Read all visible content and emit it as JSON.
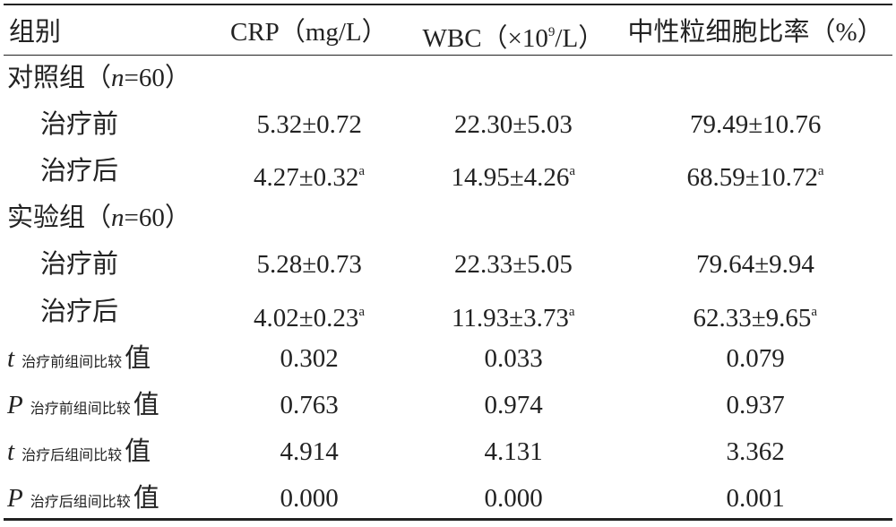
{
  "table": {
    "header": [
      [
        {
          "t": "组别"
        }
      ],
      [
        {
          "t": "CRP（mg/L）"
        }
      ],
      [
        {
          "t": "WBC（×10"
        },
        {
          "t": "9",
          "s": "sup"
        },
        {
          "t": "/L）"
        }
      ],
      [
        {
          "t": "中性粒细胞比率（%）"
        }
      ]
    ],
    "rows": [
      {
        "kind": "group",
        "cells": [
          [
            {
              "t": "对照组（"
            },
            {
              "t": "n",
              "s": "i"
            },
            {
              "t": "=60）"
            }
          ]
        ]
      },
      {
        "kind": "sub",
        "cells": [
          [
            {
              "t": "治疗前"
            }
          ],
          [
            {
              "t": "5.32±0.72"
            }
          ],
          [
            {
              "t": "22.30±5.03"
            }
          ],
          [
            {
              "t": "79.49±10.76"
            }
          ]
        ]
      },
      {
        "kind": "sub",
        "cells": [
          [
            {
              "t": "治疗后"
            }
          ],
          [
            {
              "t": "4.27±0.32"
            },
            {
              "t": "a",
              "s": "sup"
            }
          ],
          [
            {
              "t": "14.95±4.26"
            },
            {
              "t": "a",
              "s": "sup"
            }
          ],
          [
            {
              "t": "68.59±10.72"
            },
            {
              "t": "a",
              "s": "sup"
            }
          ]
        ]
      },
      {
        "kind": "group",
        "cells": [
          [
            {
              "t": "实验组（"
            },
            {
              "t": "n",
              "s": "i"
            },
            {
              "t": "=60）"
            }
          ]
        ]
      },
      {
        "kind": "sub",
        "cells": [
          [
            {
              "t": "治疗前"
            }
          ],
          [
            {
              "t": "5.28±0.73"
            }
          ],
          [
            {
              "t": "22.33±5.05"
            }
          ],
          [
            {
              "t": "79.64±9.94"
            }
          ]
        ]
      },
      {
        "kind": "sub",
        "cells": [
          [
            {
              "t": "治疗后"
            }
          ],
          [
            {
              "t": "4.02±0.23"
            },
            {
              "t": "a",
              "s": "sup"
            }
          ],
          [
            {
              "t": "11.93±3.73"
            },
            {
              "t": "a",
              "s": "sup"
            }
          ],
          [
            {
              "t": "62.33±9.65"
            },
            {
              "t": "a",
              "s": "sup"
            }
          ]
        ]
      },
      {
        "kind": "stat",
        "cells": [
          [
            {
              "t": "t",
              "s": "i"
            },
            {
              "t": "治疗前组间比较",
              "s": "sub"
            },
            {
              "t": "值"
            }
          ],
          [
            {
              "t": "0.302"
            }
          ],
          [
            {
              "t": "0.033"
            }
          ],
          [
            {
              "t": "0.079"
            }
          ]
        ]
      },
      {
        "kind": "stat",
        "cells": [
          [
            {
              "t": "P",
              "s": "i"
            },
            {
              "t": "治疗前组间比较",
              "s": "sub"
            },
            {
              "t": "值"
            }
          ],
          [
            {
              "t": "0.763"
            }
          ],
          [
            {
              "t": "0.974"
            }
          ],
          [
            {
              "t": "0.937"
            }
          ]
        ]
      },
      {
        "kind": "stat",
        "cells": [
          [
            {
              "t": "t",
              "s": "i"
            },
            {
              "t": "治疗后组间比较",
              "s": "sub"
            },
            {
              "t": "值"
            }
          ],
          [
            {
              "t": "4.914"
            }
          ],
          [
            {
              "t": "4.131"
            }
          ],
          [
            {
              "t": "3.362"
            }
          ]
        ]
      },
      {
        "kind": "stat",
        "cells": [
          [
            {
              "t": "P",
              "s": "i"
            },
            {
              "t": "治疗后组间比较",
              "s": "sub"
            },
            {
              "t": "值"
            }
          ],
          [
            {
              "t": "0.000"
            }
          ],
          [
            {
              "t": "0.000"
            }
          ],
          [
            {
              "t": "0.001"
            }
          ]
        ]
      }
    ]
  }
}
